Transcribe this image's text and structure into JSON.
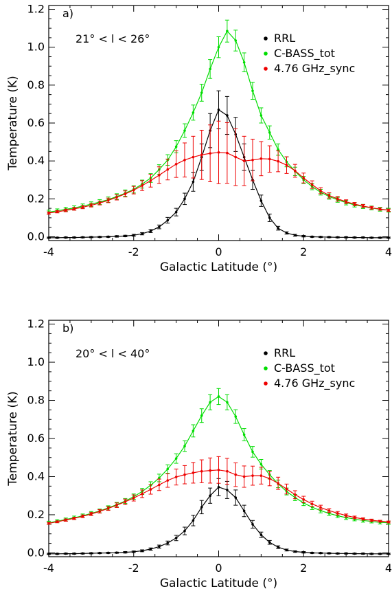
{
  "chart_data": [
    {
      "type": "line",
      "panel_label": "a)",
      "annotation": "21° < l < 26°",
      "xlabel": "Galactic Latitude (°)",
      "ylabel": "Temperature (K)",
      "xlim": [
        -4,
        4
      ],
      "ylim": [
        -0.02,
        1.22
      ],
      "xticks": [
        -4,
        -2,
        0,
        2,
        4
      ],
      "yticks": [
        0.0,
        0.2,
        0.4,
        0.6,
        0.8,
        1.0,
        1.2
      ],
      "ytick_labels": [
        "0.0",
        "0.2",
        "0.4",
        "0.6",
        "0.8",
        "1.0",
        "1.2"
      ],
      "legend_position": "top-right",
      "x": [
        -4.0,
        -3.8,
        -3.6,
        -3.4,
        -3.2,
        -3.0,
        -2.8,
        -2.6,
        -2.4,
        -2.2,
        -2.0,
        -1.8,
        -1.6,
        -1.4,
        -1.2,
        -1.0,
        -0.8,
        -0.6,
        -0.4,
        -0.2,
        0.0,
        0.2,
        0.4,
        0.6,
        0.8,
        1.0,
        1.2,
        1.4,
        1.6,
        1.8,
        2.0,
        2.2,
        2.4,
        2.6,
        2.8,
        3.0,
        3.2,
        3.4,
        3.6,
        3.8,
        4.0
      ],
      "series": [
        {
          "name": "RRL",
          "color": "#000000",
          "values": [
            -0.005,
            -0.005,
            -0.004,
            -0.004,
            -0.003,
            -0.002,
            -0.001,
            0.0,
            0.002,
            0.004,
            0.008,
            0.016,
            0.03,
            0.052,
            0.087,
            0.13,
            0.2,
            0.29,
            0.42,
            0.56,
            0.67,
            0.64,
            0.54,
            0.42,
            0.3,
            0.19,
            0.1,
            0.045,
            0.02,
            0.008,
            0.003,
            0.0,
            -0.001,
            -0.002,
            -0.003,
            -0.003,
            -0.004,
            -0.004,
            -0.005,
            -0.005,
            -0.005
          ],
          "errors": [
            0.003,
            0.003,
            0.003,
            0.003,
            0.003,
            0.003,
            0.003,
            0.003,
            0.004,
            0.004,
            0.005,
            0.006,
            0.008,
            0.01,
            0.015,
            0.02,
            0.03,
            0.05,
            0.07,
            0.09,
            0.1,
            0.1,
            0.09,
            0.07,
            0.05,
            0.03,
            0.02,
            0.01,
            0.006,
            0.005,
            0.004,
            0.003,
            0.003,
            0.003,
            0.003,
            0.003,
            0.003,
            0.003,
            0.003,
            0.003,
            0.003
          ]
        },
        {
          "name": "C-BASS_tot",
          "color": "#00dd00",
          "values": [
            0.13,
            0.137,
            0.145,
            0.152,
            0.162,
            0.172,
            0.183,
            0.196,
            0.212,
            0.23,
            0.25,
            0.278,
            0.31,
            0.355,
            0.405,
            0.475,
            0.56,
            0.655,
            0.76,
            0.885,
            1.0,
            1.085,
            1.035,
            0.92,
            0.77,
            0.64,
            0.55,
            0.46,
            0.395,
            0.345,
            0.3,
            0.265,
            0.235,
            0.212,
            0.195,
            0.18,
            0.168,
            0.16,
            0.152,
            0.145,
            0.14
          ],
          "errors": [
            0.01,
            0.01,
            0.01,
            0.011,
            0.011,
            0.012,
            0.013,
            0.014,
            0.015,
            0.017,
            0.019,
            0.021,
            0.023,
            0.025,
            0.028,
            0.032,
            0.036,
            0.04,
            0.045,
            0.05,
            0.055,
            0.058,
            0.055,
            0.05,
            0.045,
            0.04,
            0.035,
            0.03,
            0.026,
            0.022,
            0.019,
            0.017,
            0.015,
            0.014,
            0.013,
            0.012,
            0.011,
            0.011,
            0.01,
            0.01,
            0.01
          ]
        },
        {
          "name": "4.76 GHz_sync",
          "color": "#ee0000",
          "values": [
            0.125,
            0.132,
            0.139,
            0.147,
            0.156,
            0.166,
            0.178,
            0.192,
            0.208,
            0.226,
            0.246,
            0.27,
            0.296,
            0.325,
            0.355,
            0.383,
            0.405,
            0.42,
            0.432,
            0.44,
            0.445,
            0.442,
            0.42,
            0.4,
            0.405,
            0.412,
            0.41,
            0.398,
            0.378,
            0.348,
            0.31,
            0.275,
            0.243,
            0.218,
            0.2,
            0.185,
            0.172,
            0.162,
            0.153,
            0.146,
            0.14
          ],
          "errors": [
            0.006,
            0.006,
            0.007,
            0.007,
            0.008,
            0.009,
            0.01,
            0.012,
            0.014,
            0.016,
            0.02,
            0.026,
            0.034,
            0.044,
            0.055,
            0.07,
            0.09,
            0.11,
            0.13,
            0.15,
            0.165,
            0.16,
            0.15,
            0.13,
            0.11,
            0.09,
            0.07,
            0.055,
            0.044,
            0.034,
            0.026,
            0.02,
            0.016,
            0.014,
            0.012,
            0.01,
            0.009,
            0.008,
            0.007,
            0.006,
            0.006
          ]
        }
      ]
    },
    {
      "type": "line",
      "panel_label": "b)",
      "annotation": "20° < l < 40°",
      "xlabel": "Galactic Latitude (°)",
      "ylabel": "Temperature (K)",
      "xlim": [
        -4,
        4
      ],
      "ylim": [
        -0.02,
        1.22
      ],
      "xticks": [
        -4,
        -2,
        0,
        2,
        4
      ],
      "yticks": [
        0.0,
        0.2,
        0.4,
        0.6,
        0.8,
        1.0,
        1.2
      ],
      "ytick_labels": [
        "0.0",
        "0.2",
        "0.4",
        "0.6",
        "0.8",
        "1.0",
        "1.2"
      ],
      "legend_position": "top-right",
      "x": [
        -4.0,
        -3.8,
        -3.6,
        -3.4,
        -3.2,
        -3.0,
        -2.8,
        -2.6,
        -2.4,
        -2.2,
        -2.0,
        -1.8,
        -1.6,
        -1.4,
        -1.2,
        -1.0,
        -0.8,
        -0.6,
        -0.4,
        -0.2,
        0.0,
        0.2,
        0.4,
        0.6,
        0.8,
        1.0,
        1.2,
        1.4,
        1.6,
        1.8,
        2.0,
        2.2,
        2.4,
        2.6,
        2.8,
        3.0,
        3.2,
        3.4,
        3.6,
        3.8,
        4.0
      ],
      "series": [
        {
          "name": "RRL",
          "color": "#000000",
          "values": [
            -0.005,
            -0.005,
            -0.004,
            -0.004,
            -0.003,
            -0.002,
            -0.001,
            0.0,
            0.001,
            0.003,
            0.006,
            0.011,
            0.02,
            0.033,
            0.052,
            0.078,
            0.115,
            0.17,
            0.24,
            0.3,
            0.345,
            0.33,
            0.29,
            0.22,
            0.15,
            0.095,
            0.055,
            0.03,
            0.015,
            0.007,
            0.003,
            0.0,
            -0.001,
            -0.002,
            -0.003,
            -0.003,
            -0.004,
            -0.004,
            -0.005,
            -0.005,
            -0.005
          ],
          "errors": [
            0.003,
            0.003,
            0.003,
            0.003,
            0.003,
            0.003,
            0.003,
            0.003,
            0.003,
            0.004,
            0.004,
            0.005,
            0.006,
            0.008,
            0.01,
            0.014,
            0.02,
            0.028,
            0.035,
            0.04,
            0.045,
            0.045,
            0.04,
            0.03,
            0.02,
            0.014,
            0.01,
            0.007,
            0.005,
            0.004,
            0.004,
            0.003,
            0.003,
            0.003,
            0.003,
            0.003,
            0.003,
            0.003,
            0.003,
            0.003,
            0.003
          ]
        },
        {
          "name": "C-BASS_tot",
          "color": "#00dd00",
          "values": [
            0.158,
            0.166,
            0.175,
            0.184,
            0.195,
            0.207,
            0.22,
            0.236,
            0.253,
            0.272,
            0.295,
            0.322,
            0.355,
            0.393,
            0.44,
            0.495,
            0.56,
            0.64,
            0.72,
            0.79,
            0.82,
            0.79,
            0.715,
            0.62,
            0.53,
            0.465,
            0.41,
            0.362,
            0.322,
            0.29,
            0.262,
            0.24,
            0.222,
            0.207,
            0.195,
            0.185,
            0.177,
            0.17,
            0.165,
            0.16,
            0.158
          ],
          "errors": [
            0.008,
            0.008,
            0.008,
            0.009,
            0.009,
            0.01,
            0.01,
            0.011,
            0.012,
            0.013,
            0.014,
            0.016,
            0.018,
            0.02,
            0.022,
            0.025,
            0.028,
            0.032,
            0.036,
            0.04,
            0.042,
            0.04,
            0.036,
            0.032,
            0.028,
            0.025,
            0.022,
            0.02,
            0.018,
            0.016,
            0.014,
            0.013,
            0.012,
            0.011,
            0.01,
            0.01,
            0.009,
            0.009,
            0.008,
            0.008,
            0.008
          ]
        },
        {
          "name": "4.76 GHz_sync",
          "color": "#ee0000",
          "values": [
            0.155,
            0.163,
            0.172,
            0.181,
            0.192,
            0.204,
            0.218,
            0.233,
            0.25,
            0.268,
            0.288,
            0.31,
            0.333,
            0.357,
            0.38,
            0.398,
            0.41,
            0.42,
            0.428,
            0.432,
            0.435,
            0.428,
            0.41,
            0.4,
            0.405,
            0.405,
            0.39,
            0.365,
            0.335,
            0.305,
            0.28,
            0.257,
            0.238,
            0.222,
            0.208,
            0.196,
            0.186,
            0.178,
            0.171,
            0.166,
            0.162
          ],
          "errors": [
            0.005,
            0.005,
            0.006,
            0.006,
            0.007,
            0.008,
            0.009,
            0.01,
            0.012,
            0.014,
            0.016,
            0.02,
            0.025,
            0.03,
            0.036,
            0.042,
            0.048,
            0.054,
            0.06,
            0.066,
            0.07,
            0.068,
            0.062,
            0.056,
            0.05,
            0.044,
            0.038,
            0.032,
            0.026,
            0.021,
            0.017,
            0.014,
            0.012,
            0.01,
            0.009,
            0.008,
            0.007,
            0.006,
            0.006,
            0.005,
            0.005
          ]
        }
      ]
    }
  ]
}
